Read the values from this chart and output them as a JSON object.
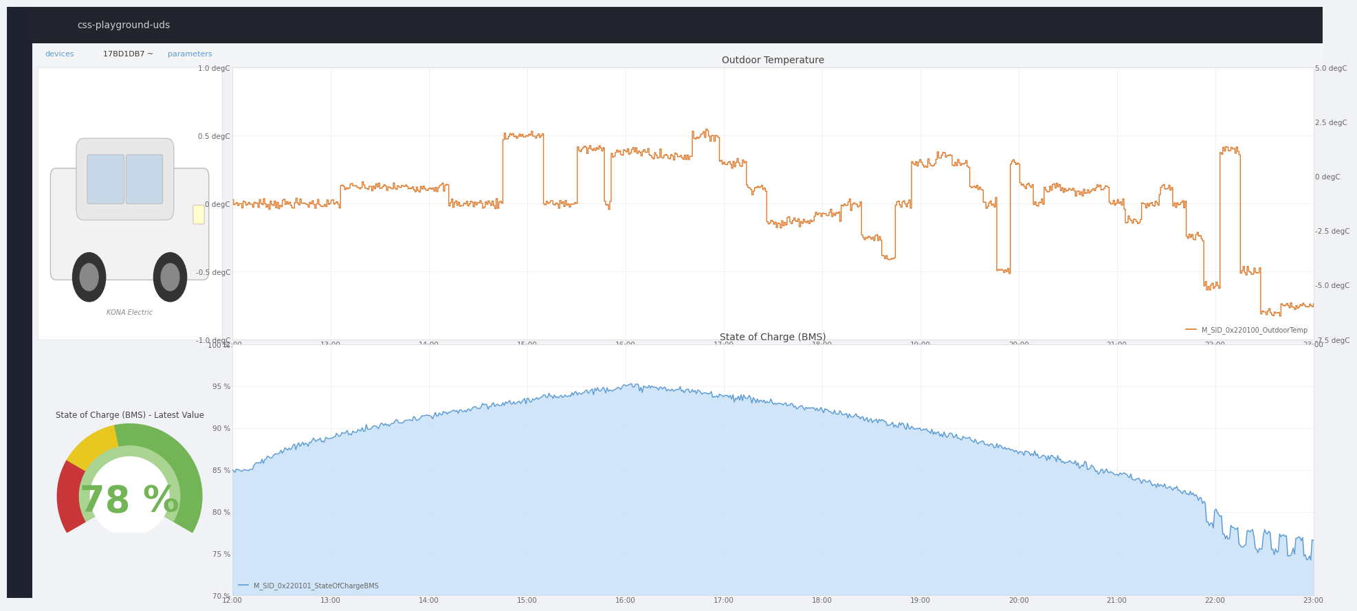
{
  "bg_color": "#f0f2f5",
  "panel_bg": "#ffffff",
  "sidebar_color": "#1f2230",
  "header_color": "#22252e",
  "filter_bar_color": "#f4f5f7",
  "top_panel": {
    "title": "Outdoor Temperature",
    "y_left_ticks": [
      "1.0 degC",
      "0.5 degC",
      "0 degC",
      "-0.5 degC",
      "-1.0 degC"
    ],
    "y_left_vals": [
      1.0,
      0.5,
      0.0,
      -0.5,
      -1.0
    ],
    "y_right_ticks": [
      "5.0 degC",
      "2.5 degC",
      "0 degC",
      "-2.5 degC",
      "-5.0 degC",
      "-7.5 degC"
    ],
    "y_right_vals": [
      5.0,
      2.5,
      0.0,
      -2.5,
      -5.0,
      -7.5
    ],
    "x_ticks": [
      "12:00",
      "13:00",
      "14:00",
      "15:00",
      "16:00",
      "17:00",
      "18:00",
      "19:00",
      "20:00",
      "21:00",
      "22:00",
      "23:00"
    ],
    "line_color": "#e07828",
    "legend_label": "M_SID_0x220100_OutdoorTemp"
  },
  "bottom_left_panel": {
    "title": "State of Charge (BMS) - Latest Value",
    "value": 78,
    "unit": "%",
    "color_red": "#c8363a",
    "color_yellow": "#e8c820",
    "color_green": "#73b556",
    "color_green_fill": "#9dcf80",
    "value_color": "#73b556"
  },
  "bottom_right_panel": {
    "title": "State of Charge (BMS)",
    "y_ticks": [
      "100 %",
      "95 %",
      "90 %",
      "85 %",
      "80 %",
      "75 %",
      "70 %"
    ],
    "y_vals": [
      100,
      95,
      90,
      85,
      80,
      75,
      70
    ],
    "x_ticks": [
      "12:00",
      "13:00",
      "14:00",
      "15:00",
      "16:00",
      "17:00",
      "18:00",
      "19:00",
      "20:00",
      "21:00",
      "22:00",
      "23:00"
    ],
    "line_color": "#5b9bd5",
    "fill_color": "#c5dff5",
    "legend_label": "M_SID_0x220101_StateOfChargeBMS"
  }
}
